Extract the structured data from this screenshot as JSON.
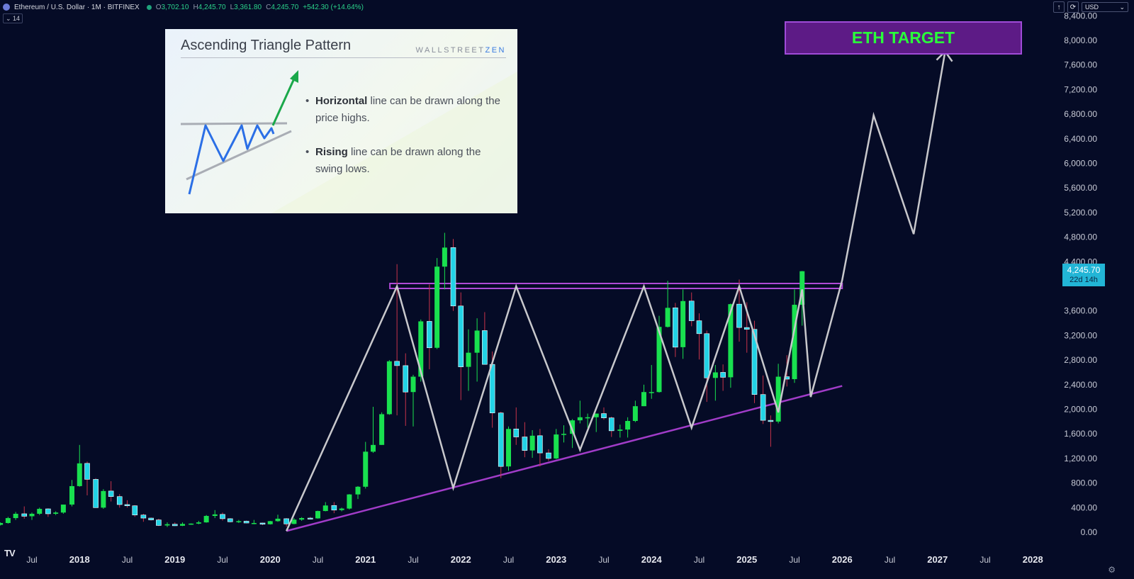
{
  "header": {
    "symbol": "Ethereum / U.S. Dollar · 1M · BITFINEX",
    "o_label": "O",
    "o": "3,702.10",
    "h_label": "H",
    "h": "4,245.70",
    "l_label": "L",
    "l": "3,361.80",
    "c_label": "C",
    "c": "4,245.70",
    "change": "+542.30 (+14.64%)",
    "collapse": "⌄ 14",
    "currency": "USD"
  },
  "price_tag": {
    "price": "4,245.70",
    "countdown": "22d 14h"
  },
  "target_label": "ETH TARGET",
  "logo": "TV",
  "inset": {
    "title": "Ascending Triangle Pattern",
    "brand_a": "WALLSTREET",
    "brand_b": "ZEN",
    "bullet1_bold": "Horizontal",
    "bullet1_rest": " line can be drawn along the price highs.",
    "bullet2_bold": "Rising",
    "bullet2_rest": " line can be drawn along the swing lows."
  },
  "colors": {
    "background": "#050b26",
    "bull": "#19e04f",
    "bear": "#22d3e6",
    "bear_body": "#2aa7e0",
    "resistance": "#b04ad6",
    "support": "#a13cc8",
    "projection": "#c8c8cc",
    "target_text": "#29ff3a"
  },
  "chart_data": {
    "type": "candlestick",
    "title": "Ethereum / U.S. Dollar · 1M · BITFINEX",
    "x_axis": {
      "ticks": [
        "Jul",
        "2018",
        "Jul",
        "2019",
        "Jul",
        "2020",
        "Jul",
        "2021",
        "Jul",
        "2022",
        "Jul",
        "2023",
        "Jul",
        "2024",
        "Jul",
        "2025",
        "Jul",
        "2026",
        "Jul",
        "2027",
        "Jul",
        "2028"
      ],
      "tick_months": [
        2017.5,
        2018,
        2018.5,
        2019,
        2019.5,
        2020,
        2020.5,
        2021,
        2021.5,
        2022,
        2022.5,
        2023,
        2023.5,
        2024,
        2024.5,
        2025,
        2025.5,
        2026,
        2026.5,
        2027,
        2027.5,
        2028
      ]
    },
    "y_axis": {
      "ticks": [
        "0.00",
        "400.00",
        "800.00",
        "1,200.00",
        "1,600.00",
        "2,000.00",
        "2,400.00",
        "2,800.00",
        "3,200.00",
        "3,600.00",
        "4,400.00",
        "4,800.00",
        "5,200.00",
        "5,600.00",
        "6,000.00",
        "6,400.00",
        "6,800.00",
        "7,200.00",
        "7,600.00",
        "8,000.00",
        "8,400.00"
      ],
      "tick_values": [
        0,
        400,
        800,
        1200,
        1600,
        2000,
        2400,
        2800,
        3200,
        3600,
        4400,
        4800,
        5200,
        5600,
        6000,
        6400,
        6800,
        7200,
        7600,
        8000,
        8400
      ],
      "range": [
        -150,
        8500
      ]
    },
    "candles_ohlc": [
      [
        2017.08,
        100,
        130,
        80,
        120
      ],
      [
        2017.17,
        120,
        160,
        110,
        150
      ],
      [
        2017.25,
        150,
        250,
        140,
        230
      ],
      [
        2017.33,
        230,
        330,
        200,
        300
      ],
      [
        2017.42,
        300,
        420,
        220,
        260
      ],
      [
        2017.5,
        260,
        320,
        200,
        300
      ],
      [
        2017.58,
        300,
        400,
        280,
        380
      ],
      [
        2017.67,
        380,
        390,
        250,
        300
      ],
      [
        2017.75,
        300,
        340,
        280,
        320
      ],
      [
        2017.83,
        320,
        450,
        300,
        450
      ],
      [
        2017.92,
        450,
        850,
        420,
        750
      ],
      [
        2018.0,
        750,
        1420,
        740,
        1120
      ],
      [
        2018.08,
        1120,
        1150,
        600,
        860
      ],
      [
        2018.17,
        860,
        880,
        400,
        400
      ],
      [
        2018.25,
        400,
        700,
        380,
        670
      ],
      [
        2018.33,
        670,
        830,
        500,
        580
      ],
      [
        2018.42,
        580,
        620,
        400,
        450
      ],
      [
        2018.5,
        450,
        520,
        400,
        430
      ],
      [
        2018.58,
        430,
        440,
        250,
        280
      ],
      [
        2018.67,
        280,
        300,
        170,
        230
      ],
      [
        2018.75,
        230,
        240,
        190,
        200
      ],
      [
        2018.83,
        200,
        220,
        100,
        110
      ],
      [
        2018.92,
        110,
        160,
        85,
        130
      ],
      [
        2019.0,
        130,
        160,
        100,
        105
      ],
      [
        2019.08,
        105,
        160,
        100,
        135
      ],
      [
        2019.17,
        135,
        145,
        120,
        140
      ],
      [
        2019.25,
        140,
        185,
        130,
        160
      ],
      [
        2019.33,
        160,
        280,
        155,
        265
      ],
      [
        2019.42,
        265,
        360,
        230,
        290
      ],
      [
        2019.5,
        290,
        320,
        190,
        220
      ],
      [
        2019.58,
        220,
        230,
        160,
        170
      ],
      [
        2019.67,
        170,
        200,
        150,
        180
      ],
      [
        2019.75,
        180,
        190,
        145,
        150
      ],
      [
        2019.83,
        150,
        200,
        130,
        150
      ],
      [
        2019.92,
        150,
        155,
        115,
        130
      ],
      [
        2020.0,
        130,
        185,
        125,
        180
      ],
      [
        2020.08,
        180,
        285,
        170,
        220
      ],
      [
        2020.17,
        220,
        230,
        90,
        135
      ],
      [
        2020.25,
        135,
        230,
        130,
        205
      ],
      [
        2020.33,
        205,
        245,
        185,
        230
      ],
      [
        2020.42,
        230,
        250,
        210,
        225
      ],
      [
        2020.5,
        225,
        350,
        220,
        345
      ],
      [
        2020.58,
        345,
        490,
        340,
        435
      ],
      [
        2020.67,
        435,
        490,
        310,
        360
      ],
      [
        2020.75,
        360,
        400,
        340,
        385
      ],
      [
        2020.83,
        385,
        620,
        370,
        615
      ],
      [
        2020.92,
        615,
        750,
        540,
        740
      ],
      [
        2021.0,
        740,
        1470,
        710,
        1310
      ],
      [
        2021.08,
        1310,
        2040,
        1290,
        1420
      ],
      [
        2021.17,
        1420,
        1950,
        1420,
        1920
      ],
      [
        2021.25,
        1920,
        2800,
        1910,
        2780
      ],
      [
        2021.33,
        2780,
        4360,
        1900,
        2710
      ],
      [
        2021.42,
        2710,
        2910,
        1730,
        2280
      ],
      [
        2021.5,
        2280,
        2560,
        1720,
        2530
      ],
      [
        2021.58,
        2530,
        3460,
        2450,
        3430
      ],
      [
        2021.67,
        3430,
        4030,
        2650,
        3000
      ],
      [
        2021.75,
        3000,
        4460,
        2980,
        4320
      ],
      [
        2021.83,
        4320,
        4870,
        3950,
        4630
      ],
      [
        2021.92,
        4630,
        4770,
        3600,
        3680
      ],
      [
        2022.0,
        3680,
        3900,
        2150,
        2690
      ],
      [
        2022.08,
        2690,
        3300,
        2300,
        2920
      ],
      [
        2022.17,
        2920,
        3480,
        2450,
        3280
      ],
      [
        2022.25,
        3280,
        3580,
        2730,
        2730
      ],
      [
        2022.33,
        2730,
        2940,
        1700,
        1940
      ],
      [
        2022.42,
        1940,
        1960,
        880,
        1070
      ],
      [
        2022.5,
        1070,
        1720,
        1000,
        1680
      ],
      [
        2022.58,
        1680,
        2030,
        1420,
        1550
      ],
      [
        2022.67,
        1550,
        1790,
        1220,
        1330
      ],
      [
        2022.75,
        1330,
        1660,
        1210,
        1570
      ],
      [
        2022.83,
        1570,
        1680,
        1070,
        1290
      ],
      [
        2022.92,
        1290,
        1350,
        1160,
        1200
      ],
      [
        2023.0,
        1200,
        1680,
        1190,
        1590
      ],
      [
        2023.08,
        1590,
        1740,
        1460,
        1600
      ],
      [
        2023.17,
        1600,
        1840,
        1370,
        1820
      ],
      [
        2023.25,
        1820,
        2140,
        1770,
        1870
      ],
      [
        2023.33,
        1870,
        1930,
        1700,
        1870
      ],
      [
        2023.42,
        1870,
        1930,
        1630,
        1930
      ],
      [
        2023.5,
        1930,
        2030,
        1830,
        1860
      ],
      [
        2023.58,
        1860,
        1880,
        1550,
        1650
      ],
      [
        2023.67,
        1650,
        1750,
        1540,
        1670
      ],
      [
        2023.75,
        1670,
        1870,
        1540,
        1810
      ],
      [
        2023.83,
        1810,
        2140,
        1790,
        2050
      ],
      [
        2023.92,
        2050,
        2400,
        2050,
        2280
      ],
      [
        2024.0,
        2280,
        2720,
        2170,
        2280
      ],
      [
        2024.08,
        2280,
        3520,
        2270,
        3340
      ],
      [
        2024.17,
        3340,
        4090,
        3330,
        3650
      ],
      [
        2024.25,
        3650,
        3730,
        2850,
        3010
      ],
      [
        2024.33,
        3010,
        3950,
        2820,
        3760
      ],
      [
        2024.42,
        3760,
        3900,
        3350,
        3440
      ],
      [
        2024.5,
        3440,
        3560,
        2810,
        3230
      ],
      [
        2024.58,
        3230,
        3280,
        2120,
        2510
      ],
      [
        2024.67,
        2510,
        2720,
        2140,
        2600
      ],
      [
        2024.75,
        2600,
        2730,
        2300,
        2520
      ],
      [
        2024.83,
        2520,
        3720,
        2350,
        3710
      ],
      [
        2024.92,
        3710,
        4110,
        3100,
        3330
      ],
      [
        2025.0,
        3330,
        3740,
        2920,
        3300
      ],
      [
        2025.08,
        3300,
        3440,
        2100,
        2240
      ],
      [
        2025.17,
        2240,
        2550,
        1760,
        1820
      ],
      [
        2025.25,
        1820,
        1900,
        1390,
        1800
      ],
      [
        2025.33,
        1800,
        2740,
        1770,
        2530
      ],
      [
        2025.42,
        2530,
        2880,
        2370,
        2490
      ],
      [
        2025.5,
        2490,
        3950,
        2430,
        3700
      ],
      [
        2025.58,
        3700,
        4250,
        3360,
        4245.7
      ]
    ],
    "resistance_line": {
      "y": 4000,
      "x_start": 2021.33,
      "x_end": 2026.0
    },
    "support_line": {
      "x_start": 2020.17,
      "y_start": 20,
      "x_end": 2026.0,
      "y_end": 2380
    },
    "projection_path": [
      [
        2020.17,
        20
      ],
      [
        2021.33,
        4000
      ],
      [
        2021.92,
        720
      ],
      [
        2022.58,
        4000
      ],
      [
        2023.25,
        1340
      ],
      [
        2023.92,
        4000
      ],
      [
        2024.42,
        1700
      ],
      [
        2024.92,
        4000
      ],
      [
        2025.33,
        1950
      ],
      [
        2025.58,
        3950
      ],
      [
        2025.67,
        2200
      ],
      [
        2026.0,
        4100
      ],
      [
        2026.33,
        6780
      ],
      [
        2026.75,
        4850
      ],
      [
        2027.08,
        7820
      ]
    ],
    "current_price": 4245.7,
    "grid": false
  }
}
